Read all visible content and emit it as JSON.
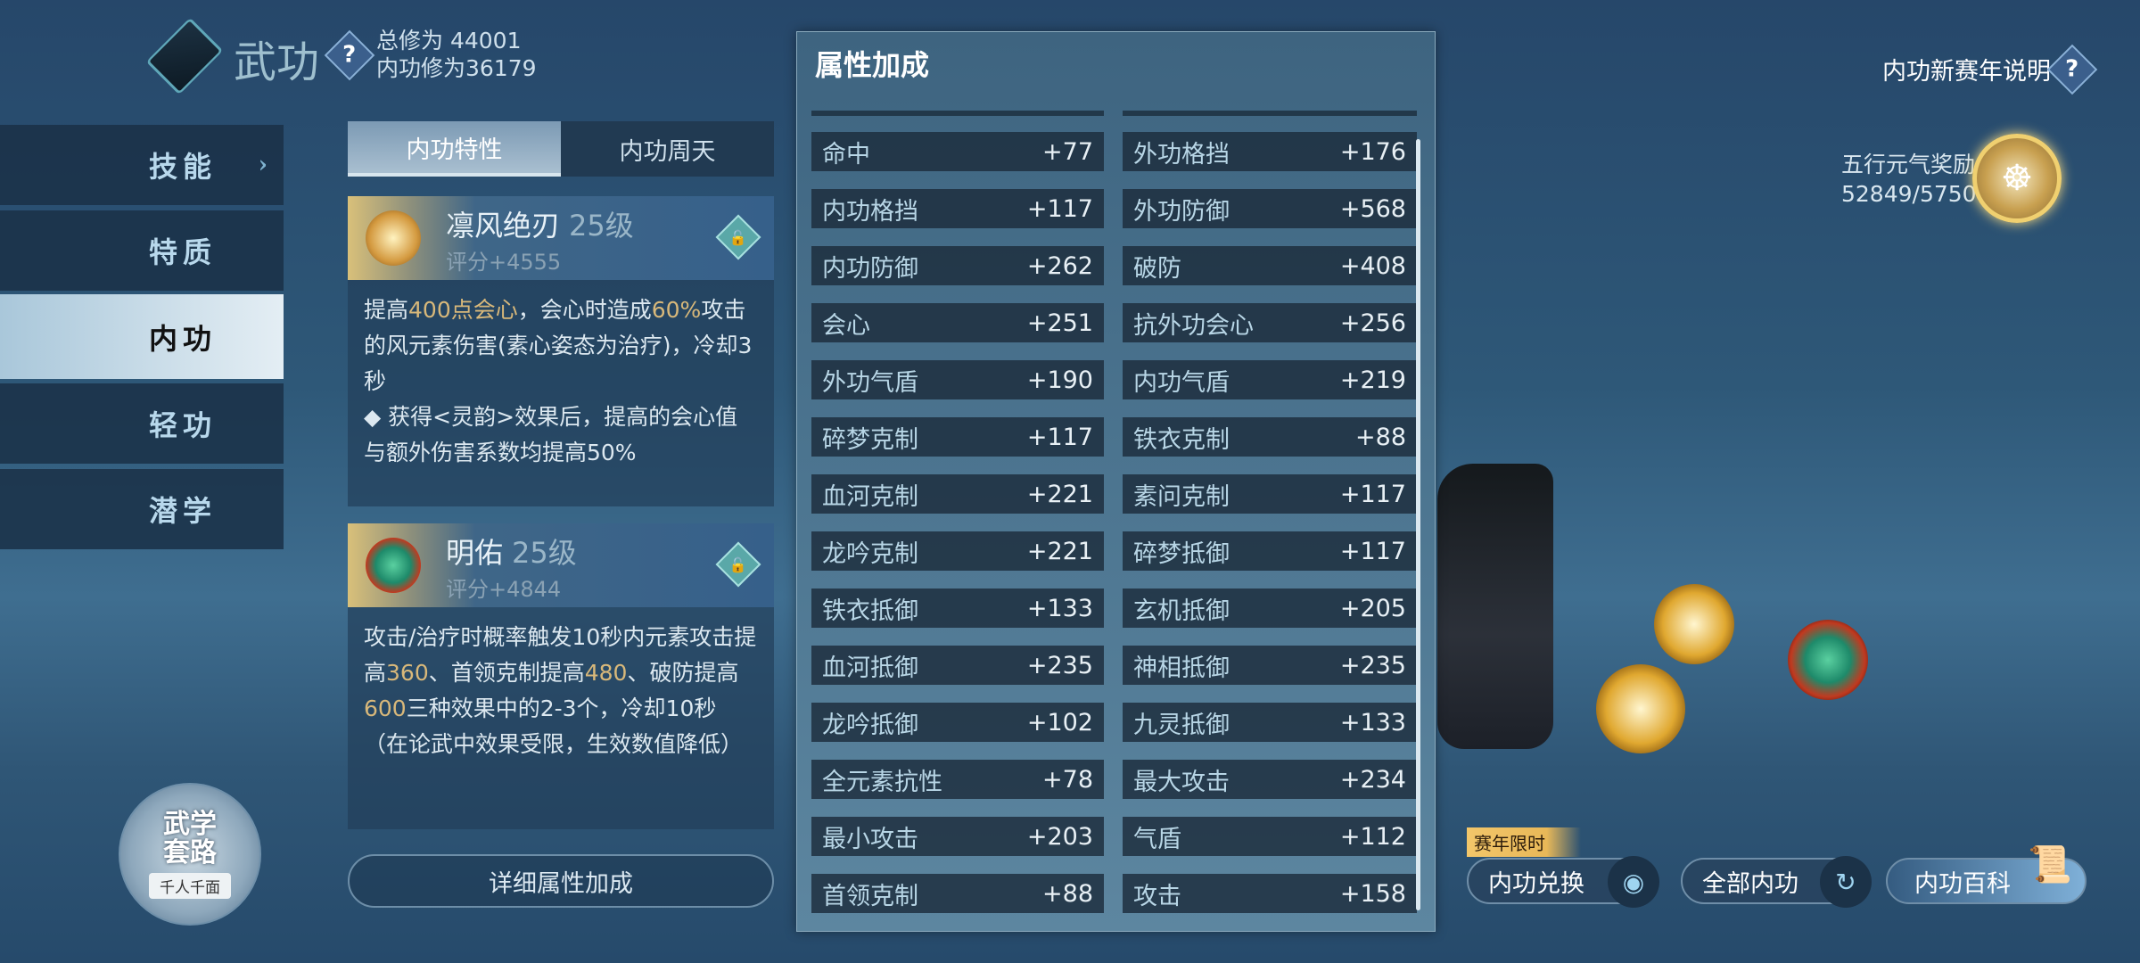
{
  "header": {
    "title": "武功",
    "total_cultivation": "总修为 44001",
    "neigong_cultivation": "内功修为36179",
    "help_icon": "question-icon"
  },
  "sidebar": {
    "items": [
      {
        "label": "技能"
      },
      {
        "label": "特质"
      },
      {
        "label": "内功",
        "active": true
      },
      {
        "label": "轻功"
      },
      {
        "label": "潜学"
      }
    ]
  },
  "tabs": [
    {
      "label": "内功特性",
      "active": true
    },
    {
      "label": "内功周天"
    }
  ],
  "cards": [
    {
      "name": "凛风绝刃",
      "level": "25级",
      "score": "评分+4555",
      "desc": [
        {
          "t": "提高"
        },
        {
          "t": "400点会心",
          "hl": true
        },
        {
          "t": "，会心时造成"
        },
        {
          "t": "60%",
          "hl": true
        },
        {
          "t": "攻击的风元素伤害(素心姿态为治疗)，冷却3秒"
        }
      ],
      "desc2": "◆ 获得<灵韵>效果后，提高的会心值与额外伤害系数均提高50%"
    },
    {
      "name": "明佑",
      "level": "25级",
      "score": "评分+4844",
      "desc": [
        {
          "t": "攻击/治疗时概率触发10秒内元素攻击提高"
        },
        {
          "t": "360",
          "hl": true
        },
        {
          "t": "、首领克制提高"
        },
        {
          "t": "480",
          "hl": true
        },
        {
          "t": "、破防提高"
        },
        {
          "t": "600",
          "hl": true
        },
        {
          "t": "三种效果中的2-3个，冷却10秒（在论武中效果受限，生效数值降低）"
        }
      ]
    }
  ],
  "detail_button": "详细属性加成",
  "wuxue": {
    "title1": "武学",
    "title2": "套路",
    "subtitle": "千人千面"
  },
  "attributes": {
    "title": "属性加成",
    "rows": [
      [
        {
          "k": "命中",
          "v": "+77"
        },
        {
          "k": "外功格挡",
          "v": "+176"
        }
      ],
      [
        {
          "k": "内功格挡",
          "v": "+117"
        },
        {
          "k": "外功防御",
          "v": "+568"
        }
      ],
      [
        {
          "k": "内功防御",
          "v": "+262"
        },
        {
          "k": "破防",
          "v": "+408"
        }
      ],
      [
        {
          "k": "会心",
          "v": "+251"
        },
        {
          "k": "抗外功会心",
          "v": "+256"
        }
      ],
      [
        {
          "k": "外功气盾",
          "v": "+190"
        },
        {
          "k": "内功气盾",
          "v": "+219"
        }
      ],
      [
        {
          "k": "碎梦克制",
          "v": "+117"
        },
        {
          "k": "铁衣克制",
          "v": "+88"
        }
      ],
      [
        {
          "k": "血河克制",
          "v": "+221"
        },
        {
          "k": "素问克制",
          "v": "+117"
        }
      ],
      [
        {
          "k": "龙吟克制",
          "v": "+221"
        },
        {
          "k": "碎梦抵御",
          "v": "+117"
        }
      ],
      [
        {
          "k": "铁衣抵御",
          "v": "+133"
        },
        {
          "k": "玄机抵御",
          "v": "+205"
        }
      ],
      [
        {
          "k": "血河抵御",
          "v": "+235"
        },
        {
          "k": "神相抵御",
          "v": "+235"
        }
      ],
      [
        {
          "k": "龙吟抵御",
          "v": "+102"
        },
        {
          "k": "九灵抵御",
          "v": "+133"
        }
      ],
      [
        {
          "k": "全元素抗性",
          "v": "+78"
        },
        {
          "k": "最大攻击",
          "v": "+234"
        }
      ],
      [
        {
          "k": "最小攻击",
          "v": "+203"
        },
        {
          "k": "气盾",
          "v": "+112"
        }
      ],
      [
        {
          "k": "首领克制",
          "v": "+88"
        },
        {
          "k": "攻击",
          "v": "+158"
        }
      ]
    ]
  },
  "season_help": "内功新赛年说明",
  "reward": {
    "label": "五行元气奖励",
    "progress": "52849/57500",
    "current": 52849,
    "max": 57500
  },
  "bottom": {
    "tag": "赛年限时",
    "exchange": "内功兑换",
    "all": "全部内功",
    "wiki": "内功百科"
  }
}
